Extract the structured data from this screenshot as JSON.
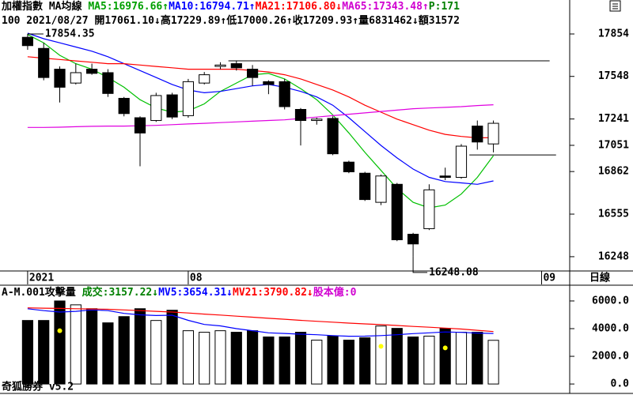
{
  "chart_data": [
    {
      "type": "candlestick",
      "header": [
        [
          {
            "text": "加權指數 MA均線 ",
            "color": "#000000"
          },
          {
            "text": "MA5:16976.66↑",
            "color": "#00a000"
          },
          {
            "text": "MA10:16794.71↑",
            "color": "#0000ff"
          },
          {
            "text": "MA21:17106.80↓",
            "color": "#ff0000"
          },
          {
            "text": "MA65:17343.48↑",
            "color": "#d000d0"
          },
          {
            "text": "P:171",
            "color": "#008000"
          }
        ],
        [
          {
            "text": "100 2021/08/27 開17061.10↓高17229.89↑低17000.26↑收17209.93↑量6831462↓額31572",
            "color": "#000000"
          }
        ]
      ],
      "open": [
        17830,
        17750,
        17600,
        17500,
        17600,
        17575,
        17390,
        17250,
        17230,
        17415,
        17265,
        17500,
        17620,
        17640,
        17600,
        17510,
        17510,
        17310,
        17230,
        17245,
        16930,
        16850,
        16640,
        16770,
        16410,
        16450,
        16830,
        16820,
        17190,
        17061.1
      ],
      "high": [
        17854.35,
        17790,
        17620,
        17640,
        17640,
        17600,
        17400,
        17260,
        17430,
        17430,
        17530,
        17580,
        17650,
        17660,
        17630,
        17520,
        17530,
        17320,
        17250,
        17260,
        16940,
        16860,
        16840,
        16780,
        16420,
        16770,
        16890,
        17060,
        17230,
        17229.89
      ],
      "low": [
        17740,
        17520,
        17360,
        17490,
        17560,
        17400,
        17260,
        16900,
        17220,
        17240,
        17250,
        17490,
        17600,
        17590,
        17480,
        17420,
        17310,
        17050,
        17200,
        16980,
        16850,
        16650,
        16620,
        16360,
        16248.08,
        16440,
        16800,
        16810,
        17020,
        17000.26
      ],
      "close": [
        17770,
        17540,
        17470,
        17575,
        17570,
        17425,
        17280,
        17140,
        17410,
        17255,
        17510,
        17560,
        17630,
        17610,
        17540,
        17490,
        17330,
        17230,
        17240,
        16990,
        16860,
        16660,
        16830,
        16370,
        16340,
        16730,
        16820,
        17045,
        17075,
        17209.93
      ],
      "series": [
        {
          "name": "MA5",
          "color": "#00c000",
          "values": [
            17850,
            17790,
            17700,
            17640,
            17600,
            17540,
            17470,
            17380,
            17320,
            17290,
            17300,
            17350,
            17440,
            17500,
            17560,
            17570,
            17530,
            17460,
            17380,
            17270,
            17140,
            17000,
            16870,
            16740,
            16640,
            16600,
            16620,
            16700,
            16820,
            16976.66
          ]
        },
        {
          "name": "MA10",
          "color": "#0000ff",
          "values": [
            17860,
            17820,
            17790,
            17760,
            17730,
            17690,
            17640,
            17590,
            17540,
            17490,
            17450,
            17430,
            17440,
            17460,
            17480,
            17490,
            17470,
            17440,
            17400,
            17340,
            17250,
            17150,
            17050,
            16960,
            16880,
            16820,
            16790,
            16780,
            16770,
            16794.71
          ]
        },
        {
          "name": "MA21",
          "color": "#ff0000",
          "values": [
            17690,
            17680,
            17670,
            17660,
            17650,
            17640,
            17640,
            17630,
            17620,
            17610,
            17600,
            17600,
            17600,
            17600,
            17590,
            17580,
            17560,
            17530,
            17490,
            17450,
            17400,
            17340,
            17290,
            17240,
            17200,
            17160,
            17130,
            17115,
            17105,
            17106.8
          ]
        },
        {
          "name": "MA65",
          "color": "#e000e0",
          "values": [
            17180,
            17180,
            17182,
            17185,
            17188,
            17190,
            17190,
            17192,
            17195,
            17200,
            17205,
            17210,
            17215,
            17220,
            17225,
            17230,
            17235,
            17245,
            17255,
            17265,
            17275,
            17285,
            17295,
            17305,
            17315,
            17320,
            17325,
            17330,
            17338,
            17343.48
          ]
        }
      ],
      "annotations": [
        {
          "index": 0,
          "value": 17854.35
        },
        {
          "index": 24,
          "value": 16248.08
        }
      ],
      "reference_lines": [
        {
          "value": 17660,
          "from": 12.5,
          "to": 32.5
        },
        {
          "value": 16982,
          "from": 27.5,
          "to": 32.9
        }
      ],
      "x_labels": [
        {
          "index": 0,
          "label": "2021"
        },
        {
          "index": 10,
          "label": "08"
        },
        {
          "index": 32,
          "label": "09"
        }
      ],
      "xlim": [
        -1.72,
        33.75
      ],
      "ylim": [
        16145,
        18099
      ],
      "yticks": [
        17854,
        17548,
        17241,
        17051,
        16862,
        16555,
        16248
      ]
    },
    {
      "type": "bar",
      "header": [
        [
          {
            "text": "A-M.001攻擊量 ",
            "color": "#000000"
          },
          {
            "text": "成交:3157.22↓",
            "color": "#008000"
          },
          {
            "text": "MV5:3654.31↓",
            "color": "#0000ff"
          },
          {
            "text": "MV21:3790.82↓",
            "color": "#ff0000"
          },
          {
            "text": "股本億:0",
            "color": "#d000d0"
          }
        ]
      ],
      "values": [
        4590,
        4590,
        6000,
        5720,
        5440,
        4420,
        4870,
        5440,
        4590,
        5330,
        3850,
        3740,
        3850,
        3740,
        3850,
        3400,
        3400,
        3740,
        3170,
        3460,
        3170,
        3340,
        4190,
        4020,
        3400,
        3460,
        4020,
        3740,
        3740,
        3157.22
      ],
      "series": [
        {
          "name": "MV5",
          "color": "#0000ff",
          "values": [
            5440,
            5300,
            5200,
            5250,
            5350,
            5300,
            5100,
            5000,
            4950,
            4970,
            4600,
            4300,
            4200,
            4000,
            3850,
            3700,
            3650,
            3600,
            3560,
            3500,
            3450,
            3460,
            3500,
            3560,
            3640,
            3700,
            3760,
            3730,
            3680,
            3654.31
          ]
        },
        {
          "name": "MV21",
          "color": "#ff0000",
          "values": [
            5500,
            5480,
            5460,
            5440,
            5420,
            5400,
            5350,
            5300,
            5250,
            5200,
            5130,
            5050,
            4980,
            4900,
            4830,
            4750,
            4680,
            4600,
            4530,
            4470,
            4400,
            4340,
            4290,
            4230,
            4160,
            4100,
            4040,
            3970,
            3880,
            3790.82
          ]
        }
      ],
      "signals": [
        {
          "index": 2,
          "value": 3850
        },
        {
          "index": 22,
          "value": 2720
        },
        {
          "index": 26,
          "value": 2610
        }
      ],
      "signal_color": "#ffff00",
      "xlim": [
        -1.72,
        33.75
      ],
      "ylim": [
        -680,
        7139
      ],
      "yticks": [
        {
          "value": 6000,
          "label": "6000.0"
        },
        {
          "value": 4000,
          "label": "4000.0"
        },
        {
          "value": 2000,
          "label": "2000.0"
        },
        {
          "value": 0,
          "label": "0.0"
        }
      ]
    }
  ],
  "period_label": "日線",
  "footer": "奇狐勝券 v5.2"
}
